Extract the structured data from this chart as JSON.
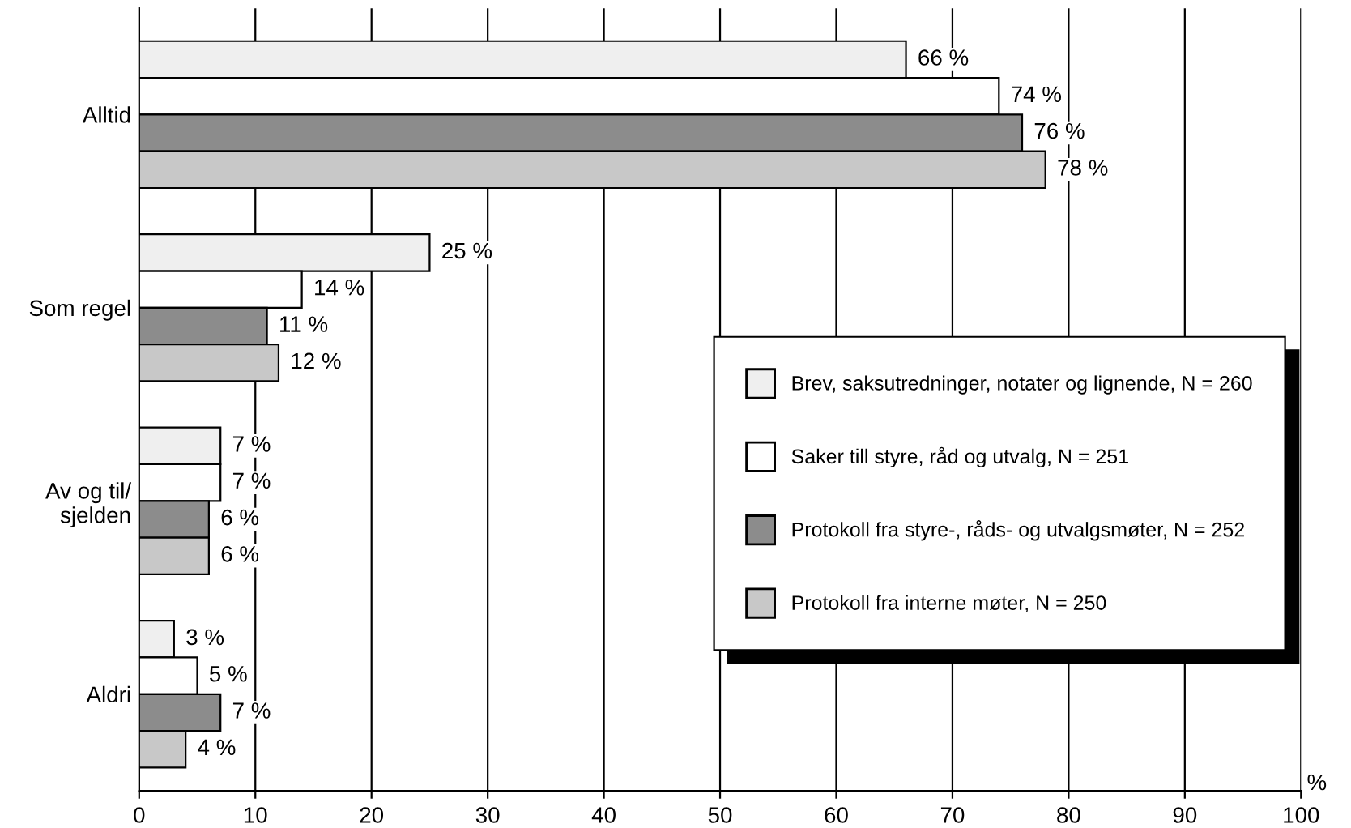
{
  "chart_data": {
    "type": "bar",
    "orientation": "horizontal",
    "xlabel": "%",
    "categories": [
      "Alltid",
      "Som regel",
      "Av og til/\nsjelden",
      "Aldri"
    ],
    "series": [
      {
        "name": "Brev, saksutredninger, notater og lignende, N = 260",
        "color": "#efefef",
        "values": [
          66,
          25,
          7,
          3
        ],
        "value_labels": [
          "66 %",
          "25 %",
          "7 %",
          "3 %"
        ]
      },
      {
        "name": "Saker till styre, råd og utvalg, N = 251",
        "color": "#ffffff",
        "values": [
          74,
          14,
          7,
          5
        ],
        "value_labels": [
          "74 %",
          "14 %",
          "7 %",
          "5 %"
        ]
      },
      {
        "name": "Protokoll fra styre-, råds- og utvalgsmøter, N = 252",
        "color": "#8c8c8c",
        "values": [
          76,
          11,
          6,
          7
        ],
        "value_labels": [
          "76 %",
          "11 %",
          "6 %",
          "7 %"
        ]
      },
      {
        "name": "Protokoll fra interne møter, N = 250",
        "color": "#c8c8c8",
        "values": [
          78,
          12,
          6,
          4
        ],
        "value_labels": [
          "78 %",
          "12 %",
          "6 %",
          "4 %"
        ]
      }
    ],
    "xlim": [
      0,
      100
    ],
    "xticks": [
      0,
      10,
      20,
      30,
      40,
      50,
      60,
      70,
      80,
      90,
      100
    ],
    "grid": "x",
    "legend": "right"
  }
}
